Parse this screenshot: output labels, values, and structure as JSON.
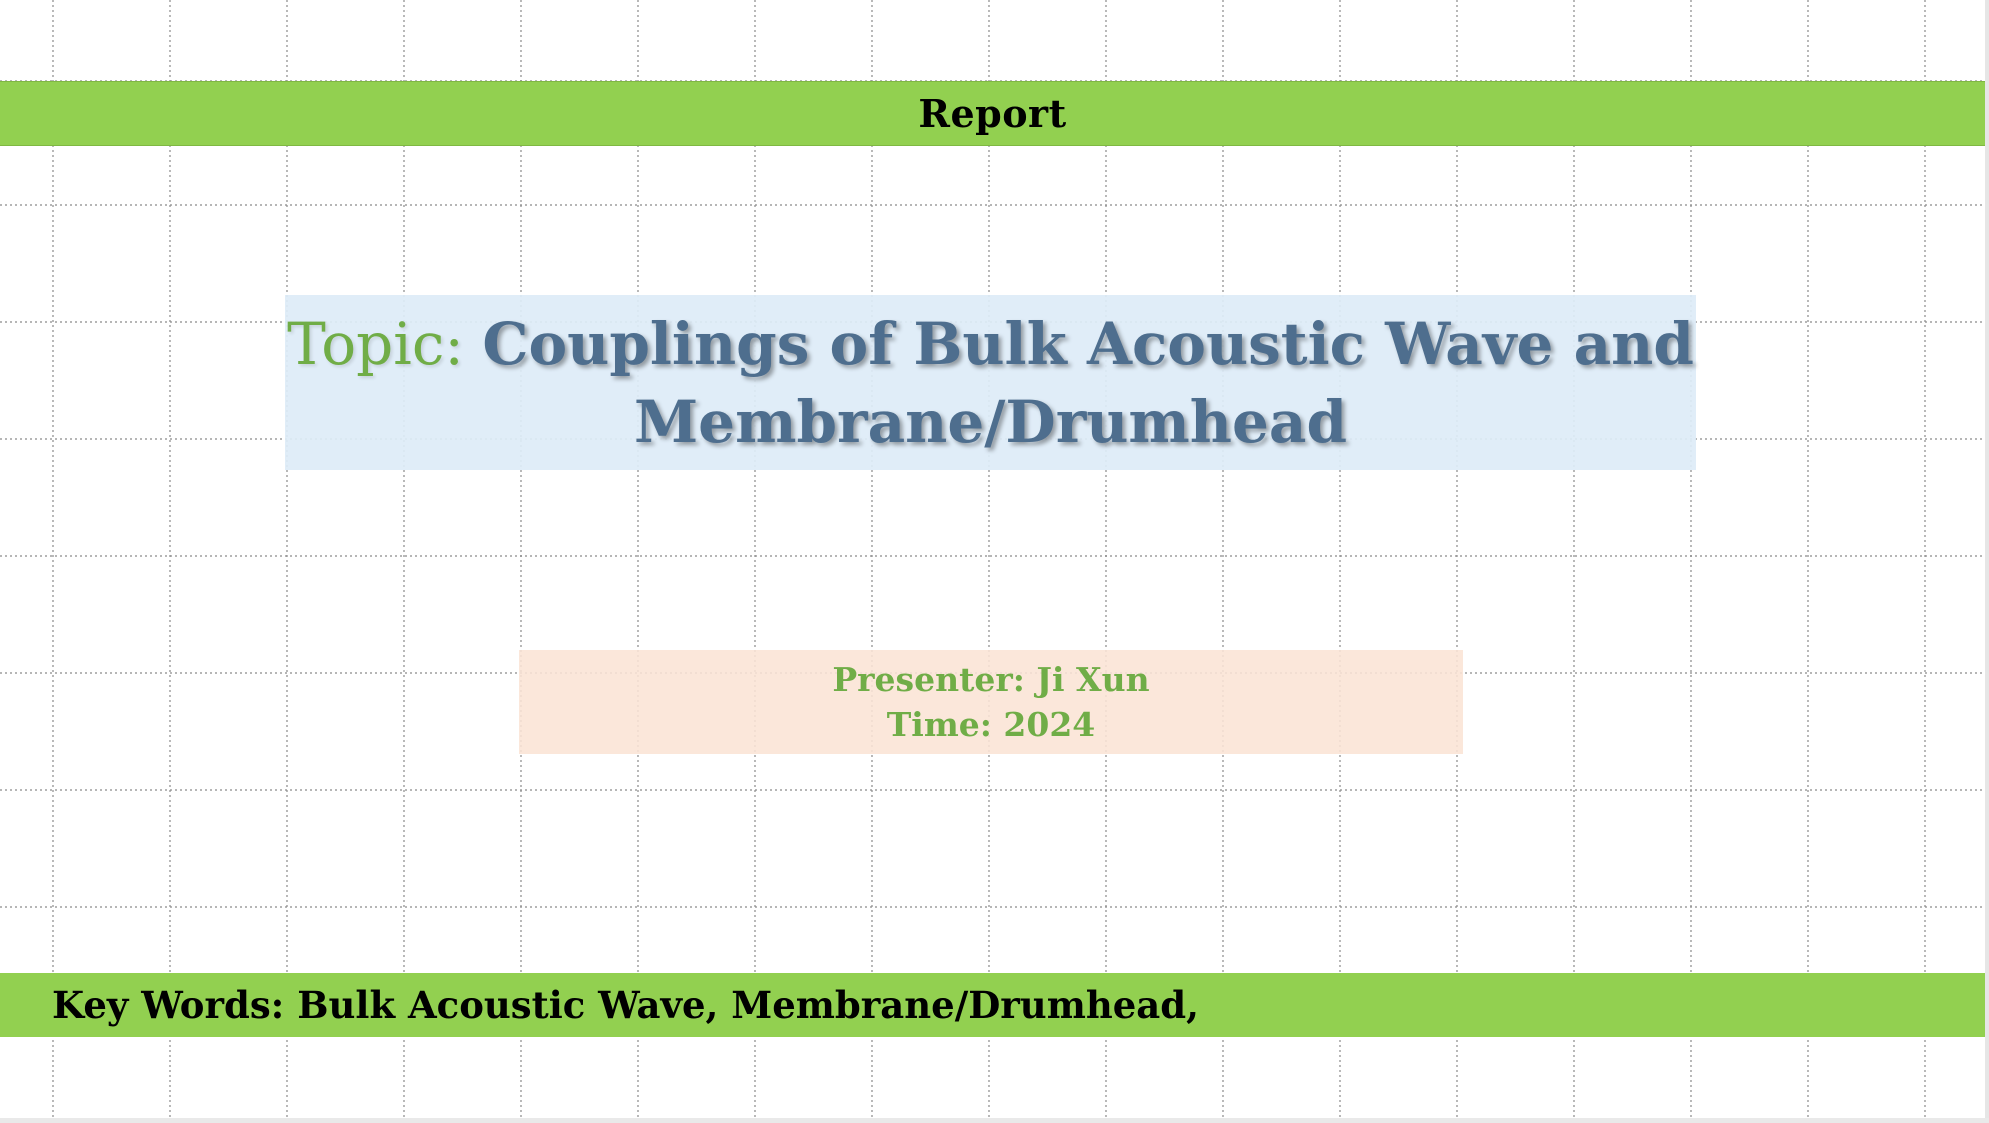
{
  "header": {
    "label": "Report"
  },
  "title": {
    "prefix": "Topic: ",
    "line1": "Couplings of Bulk Acoustic Wave and",
    "line2": "Membrane/Drumhead"
  },
  "info": {
    "presenter": "Presenter: Ji Xun",
    "time": "Time: 2024"
  },
  "footer": {
    "keywords": "Key Words: Bulk Acoustic Wave, Membrane/Drumhead,"
  },
  "colors": {
    "band_green": "#92d050",
    "title_blue": "#4e6e8e",
    "accent_green": "#70ad47",
    "title_box_bg": "#ddebf7",
    "info_box_bg": "#fbe4d5"
  }
}
